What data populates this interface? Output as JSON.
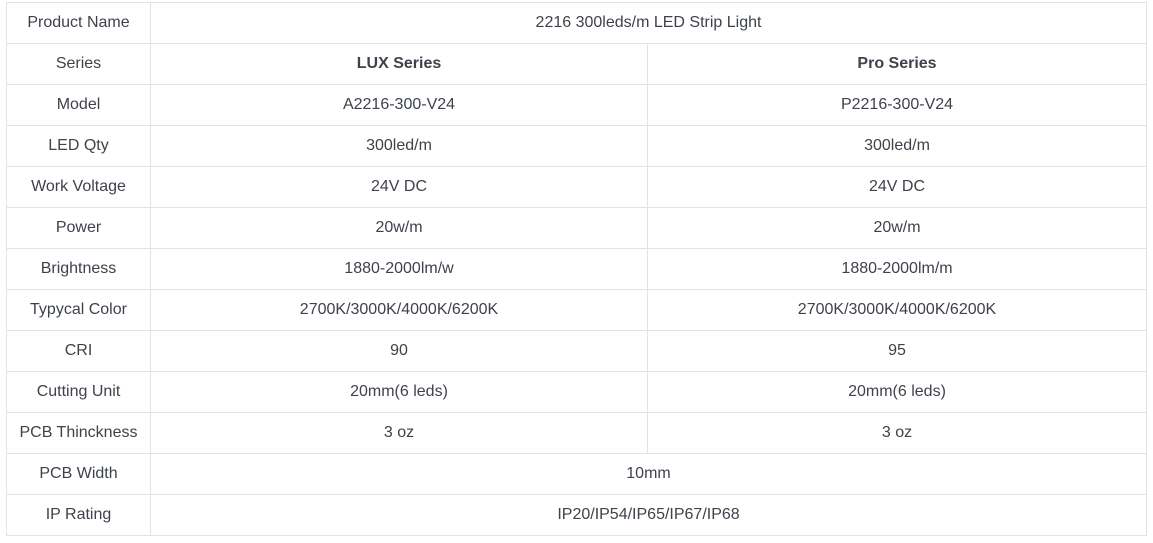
{
  "rows": [
    {
      "label": "Product Name",
      "span": "2216 300leds/m LED Strip Light"
    },
    {
      "label": "Series",
      "lux": "LUX Series",
      "pro": "Pro Series",
      "bold": true
    },
    {
      "label": "Model",
      "lux": "A2216-300-V24",
      "pro": "P2216-300-V24"
    },
    {
      "label": "LED Qty",
      "lux": "300led/m",
      "pro": "300led/m"
    },
    {
      "label": "Work Voltage",
      "lux": "24V DC",
      "pro": "24V DC"
    },
    {
      "label": "Power",
      "lux": "20w/m",
      "pro": "20w/m"
    },
    {
      "label": "Brightness",
      "lux": "1880-2000lm/w",
      "pro": "1880-2000lm/m"
    },
    {
      "label": "Typycal Color",
      "lux": "2700K/3000K/4000K/6200K",
      "pro": "2700K/3000K/4000K/6200K"
    },
    {
      "label": "CRI",
      "lux": "90",
      "pro": "95"
    },
    {
      "label": "Cutting Unit",
      "lux": "20mm(6 leds)",
      "pro": "20mm(6 leds)"
    },
    {
      "label": "PCB Thinckness",
      "lux": "3 oz",
      "pro": "3 oz"
    },
    {
      "label": "PCB Width",
      "span": "10mm"
    },
    {
      "label": "IP Rating",
      "span": "IP20/IP54/IP65/IP67/IP68"
    }
  ]
}
